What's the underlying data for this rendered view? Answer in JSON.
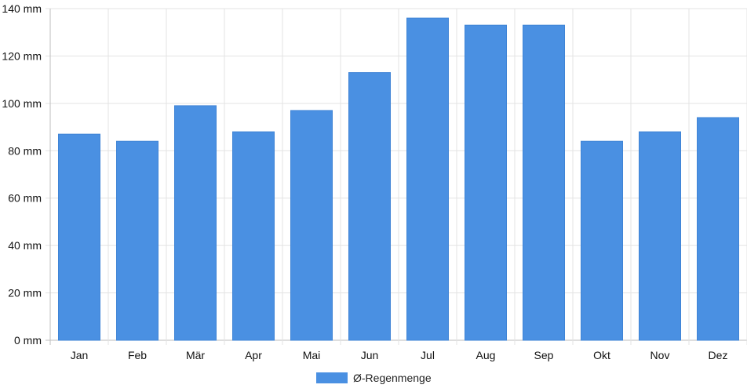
{
  "chart_data": {
    "type": "bar",
    "categories": [
      "Jan",
      "Feb",
      "Mär",
      "Apr",
      "Mai",
      "Jun",
      "Jul",
      "Aug",
      "Sep",
      "Okt",
      "Nov",
      "Dez"
    ],
    "series": [
      {
        "name": "Ø-Regenmenge",
        "color": "#4a90e2",
        "values": [
          87,
          84,
          99,
          88,
          97,
          113,
          136,
          133,
          133,
          84,
          88,
          94
        ]
      }
    ],
    "unit_suffix": " mm",
    "ylim": [
      0,
      140
    ],
    "yticks": [
      0,
      20,
      40,
      60,
      80,
      100,
      120,
      140
    ],
    "grid": true,
    "legend_position": "bottom",
    "title": "",
    "xlabel": "",
    "ylabel": ""
  }
}
